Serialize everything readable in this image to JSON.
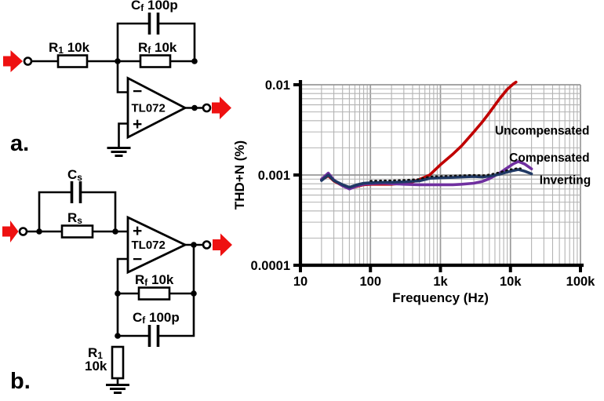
{
  "colors": {
    "io_arrow": "#ee1111",
    "uncompensated": "#c00000",
    "compensated": "#7030a0",
    "inverting": "#1f3864"
  },
  "circuit_a": {
    "panel_label": "a.",
    "r1": {
      "base": "R",
      "sub": "1",
      "rest": " 10k"
    },
    "rf": {
      "base": "R",
      "sub": "f",
      "rest": " 10k"
    },
    "cf": {
      "base": "C",
      "sub": "f",
      "rest": " 100p"
    },
    "opamp": "TL072",
    "minus": "−",
    "plus": "+"
  },
  "circuit_b": {
    "panel_label": "b.",
    "cs": {
      "base": "C",
      "sub": "s",
      "rest": ""
    },
    "rs": {
      "base": "R",
      "sub": "s",
      "rest": ""
    },
    "rf": {
      "base": "R",
      "sub": "f",
      "rest": " 10k"
    },
    "cf": {
      "base": "C",
      "sub": "f",
      "rest": " 100p"
    },
    "r1": {
      "base": "R",
      "sub": "1",
      "rest": ""
    },
    "r1_value": "10k",
    "opamp": "TL072",
    "plus": "+",
    "minus": "−"
  },
  "chart_data": {
    "type": "line",
    "title": "",
    "xlabel": "Frequency (Hz)",
    "ylabel": "THD+N (%)",
    "xscale": "log",
    "yscale": "log",
    "xlim": [
      10,
      100000
    ],
    "ylim": [
      0.0001,
      0.01
    ],
    "x_ticks": [
      "10",
      "100",
      "1k",
      "10k",
      "100k"
    ],
    "y_ticks": [
      "0.01",
      "0.001",
      "0.0001"
    ],
    "grid": true,
    "grid_minor_color": "#b3b3b3",
    "grid_major_color": "#999999",
    "legend_position": "inline-labels",
    "series": [
      {
        "name": "Uncompensated",
        "color": "#c00000",
        "style": "solid",
        "x": [
          20,
          25,
          30,
          40,
          50,
          65,
          80,
          100,
          150,
          200,
          300,
          400,
          500,
          700,
          1000,
          1500,
          2000,
          3000,
          4000,
          5000,
          7000,
          9000,
          11000,
          12000
        ],
        "y": [
          0.00088,
          0.00098,
          0.00086,
          0.00076,
          0.00071,
          0.00075,
          0.00078,
          0.00079,
          0.00079,
          0.00079,
          0.00081,
          0.00084,
          0.00089,
          0.001,
          0.0013,
          0.0017,
          0.0021,
          0.003,
          0.0039,
          0.0049,
          0.007,
          0.0089,
          0.0102,
          0.0107
        ]
      },
      {
        "name": "Compensated",
        "color": "#7030a0",
        "style": "solid",
        "x": [
          20,
          25,
          30,
          40,
          50,
          65,
          80,
          100,
          150,
          200,
          300,
          500,
          700,
          1000,
          1500,
          2000,
          3000,
          4000,
          5000,
          7000,
          9000,
          11000,
          13000,
          16000,
          20000
        ],
        "y": [
          0.0009,
          0.00105,
          0.00088,
          0.00076,
          0.0007,
          0.00076,
          0.00079,
          0.0008,
          0.00081,
          0.0008,
          0.00079,
          0.00078,
          0.00078,
          0.00078,
          0.00078,
          0.00079,
          0.00081,
          0.00085,
          0.00091,
          0.00105,
          0.0012,
          0.00133,
          0.00141,
          0.00132,
          0.00117
        ]
      },
      {
        "name": "Inverting",
        "color": "#1f3864",
        "style": "solid",
        "x": [
          20,
          25,
          30,
          40,
          50,
          65,
          80,
          100,
          150,
          200,
          300,
          500,
          700,
          1000,
          1500,
          2000,
          3000,
          4000,
          5000,
          7000,
          9000,
          11000,
          13000,
          16000,
          20000
        ],
        "y": [
          0.00087,
          0.001,
          0.00087,
          0.00078,
          0.00073,
          0.00078,
          0.00081,
          0.00082,
          0.00083,
          0.00083,
          0.00084,
          0.00086,
          0.00092,
          0.00093,
          0.00094,
          0.00095,
          0.00096,
          0.00095,
          0.00097,
          0.00102,
          0.00108,
          0.00112,
          0.00115,
          0.0011,
          0.00103
        ]
      },
      {
        "name": "Inverting (dotted overlay)",
        "color": "#111111",
        "style": "dotted",
        "x": [
          100,
          150,
          200,
          300,
          500,
          700,
          1000,
          1500,
          2000,
          3000,
          4000,
          5000,
          7000,
          9000,
          11000,
          13000,
          14000
        ],
        "y": [
          0.00086,
          0.00087,
          0.00087,
          0.00088,
          0.0009,
          0.00096,
          0.00097,
          0.00098,
          0.00099,
          0.001,
          0.00099,
          0.00101,
          0.00107,
          0.00113,
          0.00117,
          0.00119,
          0.00118
        ]
      }
    ],
    "annotations": [
      {
        "text": "Uncompensated",
        "color": "#c00000",
        "f": 6000,
        "v": 0.0031
      },
      {
        "text": "Compensated",
        "color": "#7030a0",
        "f": 9600,
        "v": 0.00155
      },
      {
        "text": "Inverting",
        "color": "#1f3864",
        "f": 26000,
        "v": 0.00088
      }
    ]
  }
}
